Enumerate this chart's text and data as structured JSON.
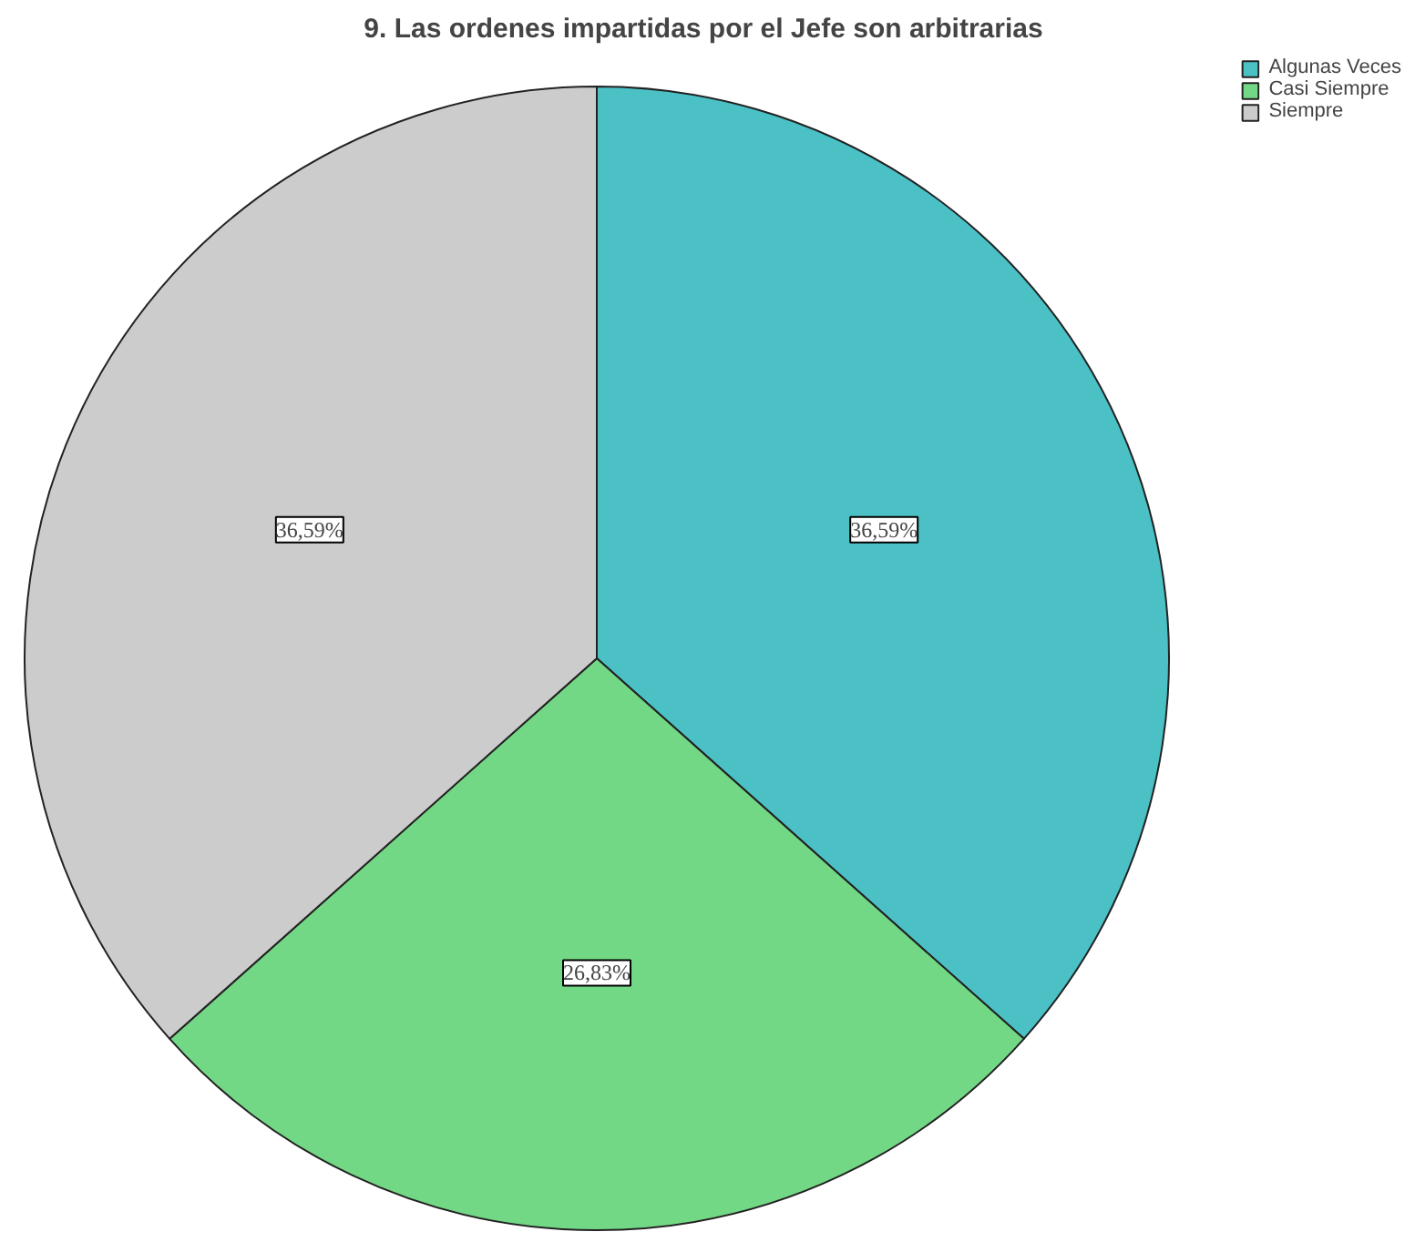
{
  "chart_data": {
    "type": "pie",
    "title": "9. Las ordenes impartidas por el Jefe son arbitrarias",
    "categories": [
      "Algunas Veces",
      "Casi Siempre",
      "Siempre"
    ],
    "values": [
      36.59,
      26.83,
      36.59
    ],
    "colors": [
      "#4bc1c6",
      "#73d885",
      "#cccccc"
    ],
    "value_labels": [
      "36,59%",
      "26,83%",
      "36,59%"
    ],
    "legend": "top right"
  }
}
